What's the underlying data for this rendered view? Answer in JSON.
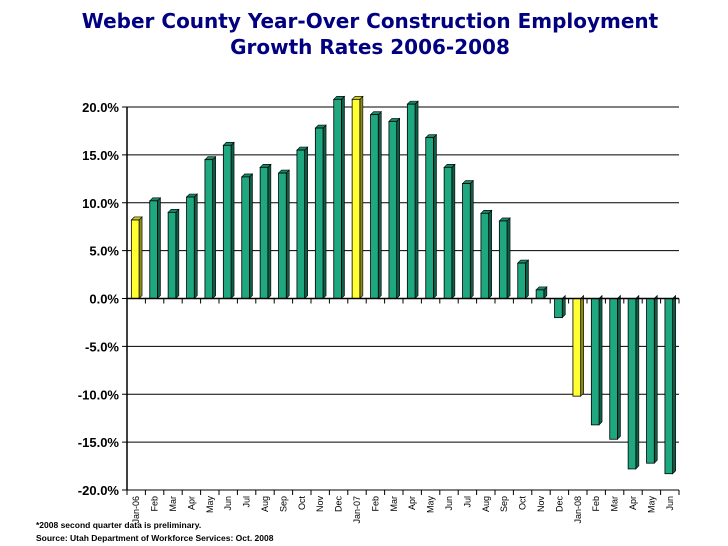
{
  "title_lines": [
    "Weber County Year-Over Construction Employment",
    "Growth Rates 2006-2008"
  ],
  "footnote": "*2008 second quarter data is preliminary.",
  "source": "Source: Utah Department of Workforce Services: Oct. 2008",
  "colors": {
    "bar": "#1fa87f",
    "highlight": "#ffff33",
    "title": "#000080"
  },
  "chart_data": {
    "type": "bar",
    "title": "Weber County Year-Over Construction Employment Growth Rates 2006-2008",
    "xlabel": "",
    "ylabel": "",
    "ylim": [
      -20,
      20
    ],
    "y_ticks": [
      "20.0%",
      "15.0%",
      "10.0%",
      "5.0%",
      "0.0%",
      "-5.0%",
      "-10.0%",
      "-15.0%",
      "-20.0%"
    ],
    "y_tick_values": [
      20,
      15,
      10,
      5,
      0,
      -5,
      -10,
      -15,
      -20
    ],
    "grid": true,
    "categories": [
      "Jan-06",
      "Feb",
      "Mar",
      "Apr",
      "May",
      "Jun",
      "Jul",
      "Aug",
      "Sep",
      "Oct",
      "Nov",
      "Dec",
      "Jan-07",
      "Feb",
      "Mar",
      "Apr",
      "May",
      "Jun",
      "Jul",
      "Aug",
      "Sep",
      "Oct",
      "Nov",
      "Dec",
      "Jan-08",
      "Feb",
      "Mar",
      "Apr",
      "May",
      "Jun"
    ],
    "values": [
      8.2,
      10.2,
      9.0,
      10.6,
      14.5,
      16.0,
      12.7,
      13.7,
      13.1,
      15.5,
      17.8,
      20.8,
      20.8,
      19.2,
      18.5,
      20.3,
      16.8,
      13.7,
      12.0,
      8.9,
      8.1,
      3.7,
      0.9,
      -2.0,
      -10.2,
      -13.2,
      -14.7,
      -17.8,
      -17.2,
      -18.3
    ],
    "highlighted": [
      "Jan-06",
      "Jan-07",
      "Jan-08"
    ]
  }
}
